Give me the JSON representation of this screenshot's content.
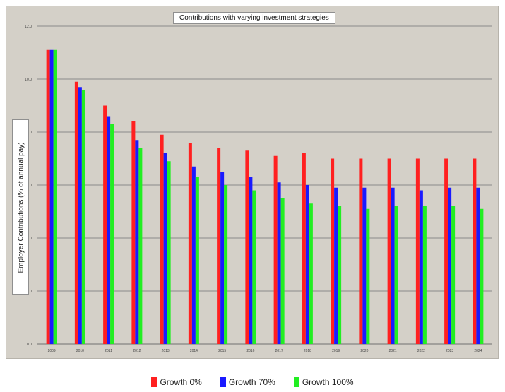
{
  "chart_data": {
    "type": "bar",
    "title": "Contributions with varying investment strategies",
    "ylabel": "Employer Contributions (% of annual pay)",
    "categories": [
      "2009",
      "2010",
      "2011",
      "2012",
      "2013",
      "2014",
      "2015",
      "2016",
      "2017",
      "2018",
      "2019",
      "2020",
      "2021",
      "2022",
      "2023",
      "2024"
    ],
    "ylim": [
      0,
      12
    ],
    "yticks": [
      "0.0",
      "2.0",
      "4.0",
      "6.0",
      "8.0",
      "10.0",
      "12.0"
    ],
    "grid": true,
    "legend_position": "bottom",
    "series": [
      {
        "name": "Growth 0%",
        "color": "#ff2020",
        "values": [
          11.1,
          9.9,
          9.0,
          8.4,
          7.9,
          7.6,
          7.4,
          7.3,
          7.1,
          7.2,
          7.0,
          7.0,
          7.0,
          7.0,
          7.0,
          7.0
        ]
      },
      {
        "name": "Growth 70%",
        "color": "#1a1aff",
        "values": [
          11.1,
          9.7,
          8.6,
          7.7,
          7.2,
          6.7,
          6.5,
          6.3,
          6.1,
          6.0,
          5.9,
          5.9,
          5.9,
          5.8,
          5.9,
          5.9
        ]
      },
      {
        "name": "Growth 100%",
        "color": "#22ee22",
        "values": [
          11.1,
          9.6,
          8.3,
          7.4,
          6.9,
          6.3,
          6.0,
          5.8,
          5.5,
          5.3,
          5.2,
          5.1,
          5.2,
          5.2,
          5.2,
          5.1
        ]
      }
    ]
  }
}
